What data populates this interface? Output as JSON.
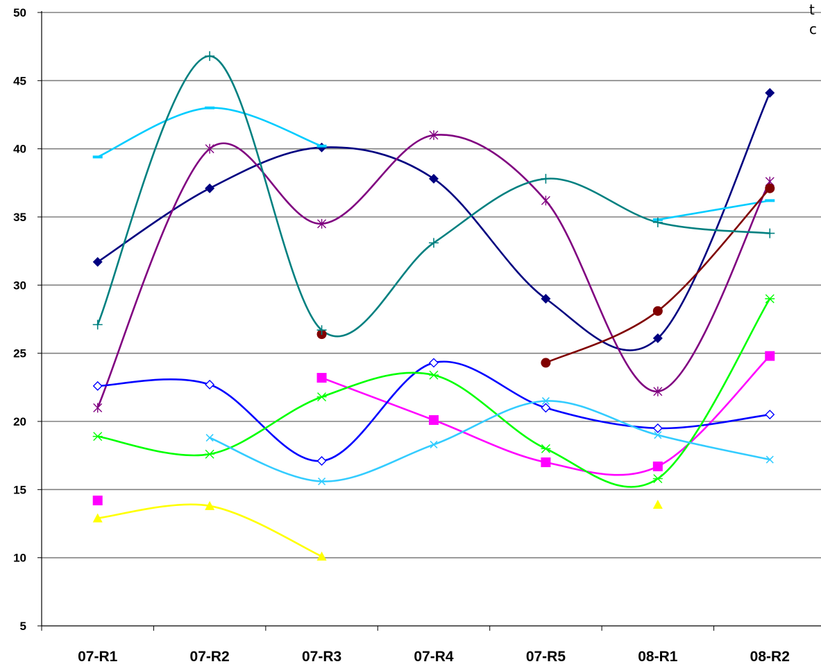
{
  "corner_text": [
    "t",
    "c"
  ],
  "chart_data": {
    "type": "line",
    "title": "",
    "xlabel": "",
    "ylabel": "",
    "categories": [
      "07-R1",
      "07-R2",
      "07-R3",
      "07-R4",
      "07-R5",
      "08-R1",
      "08-R2"
    ],
    "ylim": [
      5,
      50
    ],
    "yticks": [
      5,
      10,
      15,
      20,
      25,
      30,
      35,
      40,
      45,
      50
    ],
    "grid": "horizontal",
    "smoothed": true,
    "legend": "none",
    "series": [
      {
        "color": "#000080",
        "marker": "diamond-filled",
        "values": [
          31.7,
          37.1,
          40.1,
          37.8,
          29.0,
          26.1,
          44.1
        ]
      },
      {
        "color": "#FF00FF",
        "marker": "square-filled",
        "values": [
          14.2,
          null,
          23.2,
          20.1,
          17.0,
          16.7,
          24.8
        ]
      },
      {
        "color": "#FFFF00",
        "marker": "triangle-filled",
        "values": [
          12.9,
          13.8,
          10.1,
          null,
          null,
          13.9,
          null
        ]
      },
      {
        "color": "#00CCFF",
        "marker": "dash",
        "values": [
          39.4,
          43.0,
          40.2,
          null,
          null,
          34.8,
          36.2
        ]
      },
      {
        "color": "#800080",
        "marker": "asterisk",
        "values": [
          21.0,
          40.0,
          34.5,
          41.0,
          36.2,
          22.2,
          37.6
        ]
      },
      {
        "color": "#800000",
        "marker": "circle-filled",
        "values": [
          null,
          null,
          26.4,
          null,
          24.3,
          28.1,
          37.1
        ]
      },
      {
        "color": "#008080",
        "marker": "plus",
        "values": [
          27.1,
          46.8,
          26.7,
          33.1,
          37.8,
          34.6,
          33.8
        ]
      },
      {
        "color": "#0000FF",
        "marker": "diamond-open",
        "values": [
          22.6,
          22.7,
          17.1,
          24.3,
          21.0,
          19.5,
          20.5
        ]
      },
      {
        "color": "#00FF00",
        "marker": "star",
        "values": [
          18.9,
          17.6,
          21.8,
          23.4,
          18.0,
          15.8,
          29.0
        ]
      },
      {
        "color": "#33CCFF",
        "marker": "cross",
        "values": [
          null,
          18.8,
          15.6,
          18.3,
          21.5,
          19.0,
          17.2
        ]
      }
    ]
  }
}
